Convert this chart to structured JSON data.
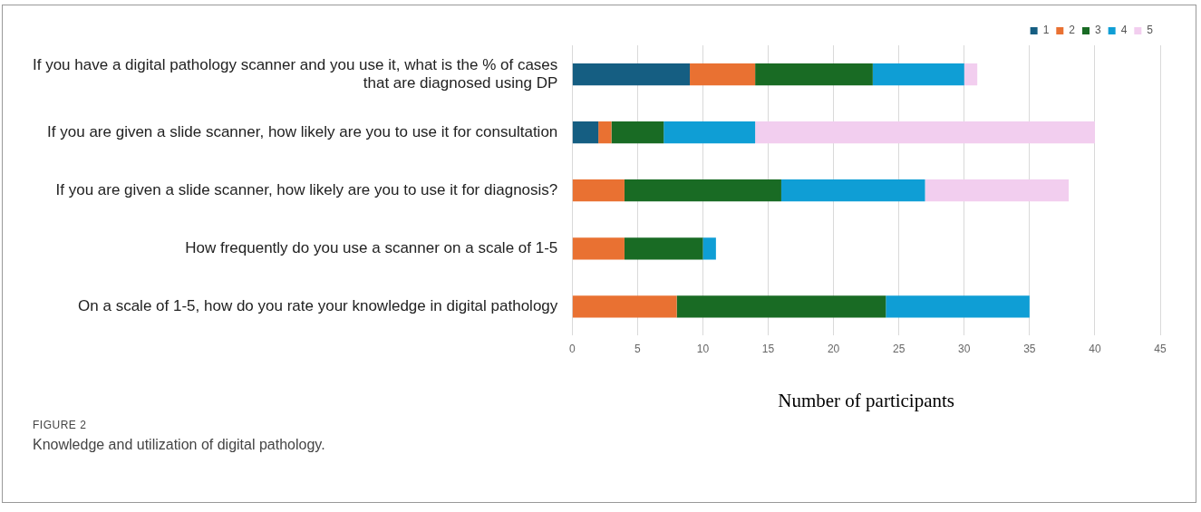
{
  "chart_data": {
    "type": "bar",
    "orientation": "horizontal",
    "stacked": true,
    "categories": [
      "If you have a digital pathology scanner and you use it, what is the % of cases that are diagnosed using DP",
      "If you are given a slide scanner, how likely are you to use it for consultation",
      "If you are given a slide scanner, how likely are you to use it for diagnosis?",
      "How frequently do you use a scanner on a scale of 1-5",
      "On a scale of 1-5, how do you rate your knowledge in digital pathology"
    ],
    "series": [
      {
        "name": "1",
        "color": "#155e82",
        "values": [
          9,
          2,
          0,
          0,
          0
        ]
      },
      {
        "name": "2",
        "color": "#e97132",
        "values": [
          5,
          1,
          4,
          4,
          8
        ]
      },
      {
        "name": "3",
        "color": "#196b24",
        "values": [
          9,
          4,
          12,
          6,
          16
        ]
      },
      {
        "name": "4",
        "color": "#0f9ed5",
        "values": [
          7,
          7,
          11,
          1,
          11
        ]
      },
      {
        "name": "5",
        "color": "#f2ceef",
        "values": [
          1,
          26,
          11,
          0,
          0
        ]
      }
    ],
    "xlim": [
      0,
      45
    ],
    "xticks": [
      0,
      5,
      10,
      15,
      20,
      25,
      30,
      35,
      40,
      45
    ],
    "xlabel": "Number of participants",
    "grid": "x",
    "legend": "top right",
    "annotations": [
      "FIGURE 2",
      "Knowledge and utilization of digital pathology."
    ]
  }
}
